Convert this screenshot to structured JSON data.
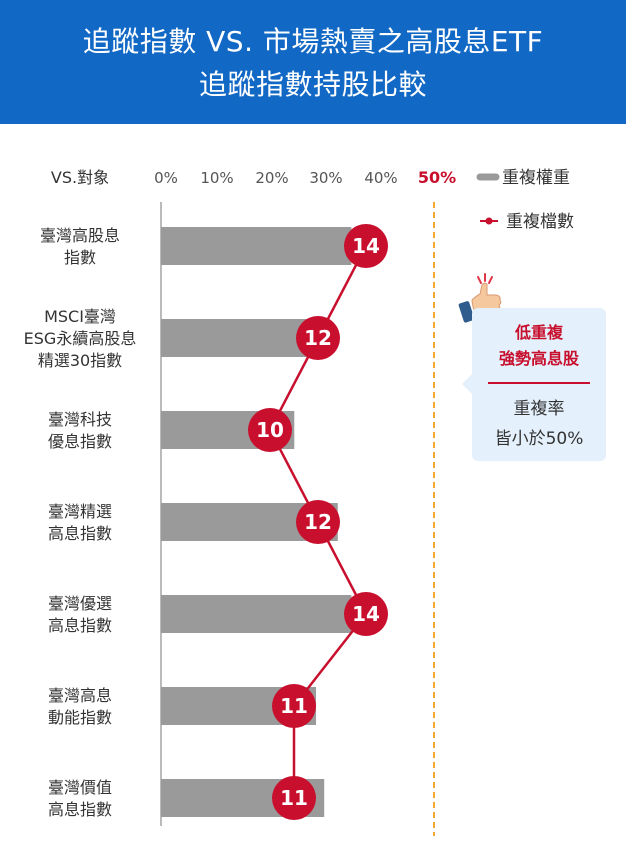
{
  "header": {
    "title_line1": "追蹤指數 VS. 市場熱賣之高股息ETF",
    "title_line2": "追蹤指數持股比較"
  },
  "colors": {
    "header_bg": "#1268c5",
    "bar": "#9a9a9a",
    "line": "#c8102e",
    "dot": "#c8102e",
    "threshold": "#f0a830",
    "callout_bg": "#e4f0fb"
  },
  "chart_data": {
    "type": "bar",
    "orientation": "horizontal",
    "corner_label": "VS.對象",
    "x_ticks": [
      "0%",
      "10%",
      "20%",
      "30%",
      "40%",
      "50%"
    ],
    "xlim": [
      0,
      50
    ],
    "highlight_tick": "50%",
    "threshold": 50,
    "categories": [
      [
        "臺灣高股息",
        "指數"
      ],
      [
        "MSCI臺灣",
        "ESG永續高股息",
        "精選30指數"
      ],
      [
        "臺灣科技",
        "優息指數"
      ],
      [
        "臺灣精選",
        "高息指數"
      ],
      [
        "臺灣優選",
        "高息指數"
      ],
      [
        "臺灣高息",
        "動能指數"
      ],
      [
        "臺灣價值",
        "高息指數"
      ]
    ],
    "series": [
      {
        "name": "重複權重",
        "kind": "bar",
        "values": [
          35,
          30,
          24.5,
          32.5,
          35,
          28.5,
          30
        ]
      },
      {
        "name": "重複檔數",
        "kind": "line",
        "values": [
          14,
          12,
          10,
          12,
          14,
          11,
          11
        ]
      }
    ],
    "legend": {
      "position": "top-right",
      "items": [
        "重複權重",
        "重複檔數"
      ]
    },
    "grid": false
  },
  "callout": {
    "icon": "thumbs-up-icon",
    "highlight_line1": "低重複",
    "highlight_line2": "強勢高息股",
    "note_line1": "重複率",
    "note_line2": "皆小於50%"
  }
}
